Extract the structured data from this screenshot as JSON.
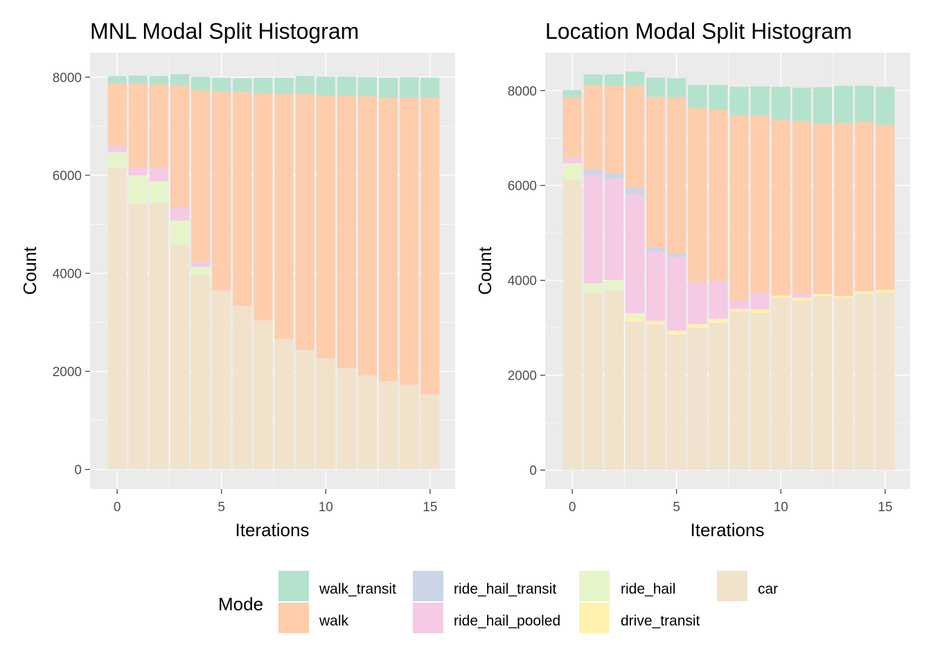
{
  "chart_data": [
    {
      "type": "bar",
      "stacked": true,
      "title": "MNL Modal Split Histogram",
      "xlabel": "Iterations",
      "ylabel": "Count",
      "xlim": [
        -1.3,
        16.2
      ],
      "ylim": [
        -400,
        8500
      ],
      "x_ticks": [
        0,
        5,
        10,
        15
      ],
      "y_ticks": [
        0,
        2000,
        4000,
        6000,
        8000
      ],
      "grid": true,
      "x": [
        0,
        1,
        2,
        3,
        4,
        5,
        6,
        7,
        8,
        9,
        10,
        11,
        12,
        13,
        14,
        15
      ],
      "series": [
        {
          "name": "car",
          "values": [
            6150,
            5420,
            5430,
            4580,
            3970,
            3650,
            3330,
            3040,
            2660,
            2440,
            2270,
            2070,
            1920,
            1800,
            1730,
            1530
          ]
        },
        {
          "name": "drive_transit",
          "values": [
            0,
            0,
            0,
            0,
            0,
            0,
            0,
            0,
            0,
            0,
            0,
            0,
            0,
            0,
            0,
            0
          ]
        },
        {
          "name": "ride_hail",
          "values": [
            320,
            580,
            450,
            500,
            160,
            0,
            0,
            0,
            0,
            0,
            0,
            0,
            0,
            0,
            0,
            0
          ]
        },
        {
          "name": "ride_hail_pooled",
          "values": [
            130,
            170,
            280,
            260,
            120,
            0,
            0,
            0,
            0,
            0,
            0,
            0,
            0,
            0,
            0,
            0
          ]
        },
        {
          "name": "ride_hail_transit",
          "values": [
            0,
            0,
            0,
            0,
            0,
            0,
            0,
            0,
            0,
            0,
            0,
            0,
            0,
            0,
            0,
            0
          ]
        },
        {
          "name": "walk",
          "values": [
            1270,
            1710,
            1690,
            2490,
            3480,
            4060,
            4370,
            4630,
            5000,
            5220,
            5360,
            5560,
            5690,
            5780,
            5860,
            6050
          ]
        },
        {
          "name": "walk_transit",
          "values": [
            150,
            150,
            170,
            230,
            280,
            280,
            280,
            320,
            330,
            360,
            380,
            380,
            390,
            410,
            410,
            410
          ]
        }
      ]
    },
    {
      "type": "bar",
      "stacked": true,
      "title": "Location Modal Split Histogram",
      "xlabel": "Iterations",
      "ylabel": "Count",
      "xlim": [
        -1.3,
        16.2
      ],
      "ylim": [
        -400,
        8800
      ],
      "x_ticks": [
        0,
        5,
        10,
        15
      ],
      "y_ticks": [
        0,
        2000,
        4000,
        6000,
        8000
      ],
      "grid": true,
      "x": [
        0,
        1,
        2,
        3,
        4,
        5,
        6,
        7,
        8,
        9,
        10,
        11,
        12,
        13,
        14,
        15
      ],
      "series": [
        {
          "name": "car",
          "values": [
            6130,
            3730,
            3790,
            3130,
            3070,
            2860,
            3000,
            3110,
            3330,
            3310,
            3630,
            3570,
            3660,
            3620,
            3710,
            3740
          ]
        },
        {
          "name": "drive_transit",
          "values": [
            0,
            0,
            0,
            70,
            80,
            80,
            80,
            80,
            70,
            80,
            50,
            60,
            50,
            50,
            60,
            60
          ]
        },
        {
          "name": "ride_hail",
          "values": [
            340,
            210,
            220,
            110,
            0,
            0,
            0,
            0,
            0,
            0,
            0,
            0,
            0,
            0,
            0,
            0
          ]
        },
        {
          "name": "ride_hail_pooled",
          "values": [
            130,
            2290,
            2130,
            2510,
            1460,
            1550,
            880,
            800,
            180,
            350,
            0,
            90,
            0,
            0,
            0,
            0
          ]
        },
        {
          "name": "ride_hail_transit",
          "values": [
            0,
            100,
            120,
            140,
            80,
            70,
            0,
            0,
            0,
            0,
            0,
            0,
            0,
            0,
            0,
            0
          ]
        },
        {
          "name": "walk",
          "values": [
            1260,
            1790,
            1850,
            2150,
            3180,
            3300,
            3670,
            3610,
            3890,
            3730,
            3710,
            3640,
            3600,
            3650,
            3570,
            3480
          ]
        },
        {
          "name": "walk_transit",
          "values": [
            150,
            220,
            230,
            290,
            400,
            400,
            490,
            520,
            610,
            620,
            690,
            700,
            760,
            780,
            760,
            800
          ]
        }
      ]
    }
  ],
  "legend": {
    "title": "Mode",
    "items": [
      {
        "label": "walk_transit",
        "color": "#b3e2cd"
      },
      {
        "label": "walk",
        "color": "#fdcdac"
      },
      {
        "label": "ride_hail_transit",
        "color": "#cbd5e8"
      },
      {
        "label": "ride_hail_pooled",
        "color": "#f4cae4"
      },
      {
        "label": "ride_hail",
        "color": "#e6f5c9"
      },
      {
        "label": "drive_transit",
        "color": "#fff2ae"
      },
      {
        "label": "car",
        "color": "#f1e2cc"
      }
    ]
  },
  "colors": {
    "panel_background": "#ebebeb",
    "grid_major": "#ffffff",
    "tick_text": "#4d4d4d"
  }
}
